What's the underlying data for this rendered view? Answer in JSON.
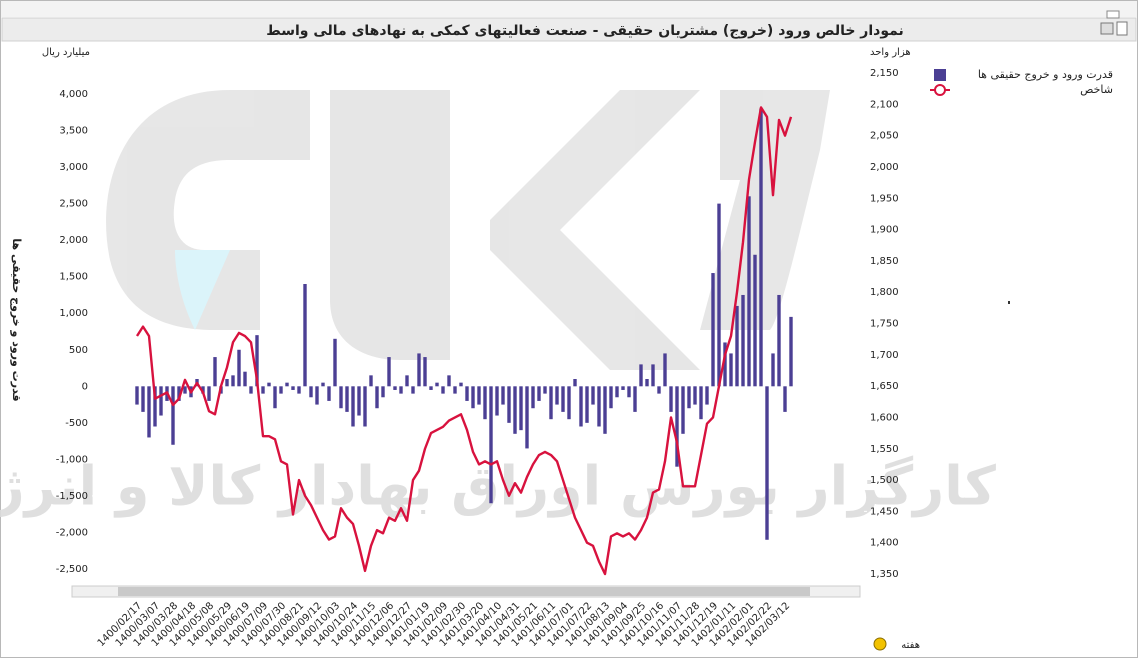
{
  "chart_data": {
    "type": "combo",
    "title": "نمودار خالص ورود (خروج) مشتریان حقیقی - صنعت فعالیتهای کمکی به نهادهای مالی واسط",
    "y_unit": "میلیارد ریال",
    "y2_unit": "هزار واحد",
    "ylabel": "قدرت ورود و خروج حقیقی ها",
    "xlabel": "هفته",
    "watermark": "کارگزار بورس اوراق بهادار کالا و انرژی",
    "categories": [
      "1400/02/17",
      null,
      null,
      "1400/03/07",
      null,
      null,
      "1400/03/28",
      null,
      null,
      "1400/04/18",
      null,
      null,
      "1400/05/08",
      null,
      null,
      "1400/05/29",
      null,
      null,
      "1400/06/19",
      null,
      null,
      "1400/07/09",
      null,
      null,
      "1400/07/30",
      null,
      null,
      "1400/08/21",
      null,
      null,
      "1400/09/12",
      null,
      null,
      "1400/10/03",
      null,
      null,
      "1400/10/24",
      null,
      null,
      "1400/11/15",
      null,
      null,
      "1400/12/06",
      null,
      null,
      "1400/12/27",
      null,
      null,
      "1401/01/19",
      null,
      null,
      "1401/02/09",
      null,
      null,
      "1401/02/30",
      null,
      null,
      "1401/03/20",
      null,
      null,
      "1401/04/10",
      null,
      null,
      "1401/04/31",
      null,
      null,
      "1401/05/21",
      null,
      null,
      "1401/06/11",
      null,
      null,
      "1401/07/01",
      null,
      null,
      "1401/07/22",
      null,
      null,
      "1401/08/13",
      null,
      null,
      "1401/09/04",
      null,
      null,
      "1401/09/25",
      null,
      null,
      "1401/10/16",
      null,
      null,
      "1401/11/07",
      null,
      null,
      "1401/11/28",
      null,
      null,
      "1401/12/19",
      null,
      null,
      "1402/01/11",
      null,
      null,
      "1402/02/01",
      null,
      null,
      "1402/02/22",
      null,
      null,
      "1402/03/12",
      null
    ],
    "series": [
      {
        "name": "قدرت ورود و خروج حقیقی ها",
        "kind": "bar",
        "color": "#4b3f94",
        "values": [
          -250,
          -350,
          -700,
          -550,
          -400,
          -200,
          -800,
          -200,
          -100,
          -150,
          100,
          -100,
          -200,
          400,
          -100,
          100,
          150,
          500,
          200,
          -100,
          700,
          -100,
          50,
          -300,
          -100,
          50,
          -50,
          -100,
          1400,
          -150,
          -250,
          50,
          -200,
          650,
          -300,
          -350,
          -550,
          -400,
          -550,
          150,
          -300,
          -150,
          400,
          -50,
          -100,
          150,
          -100,
          450,
          400,
          -50,
          50,
          -100,
          150,
          -100,
          50,
          -200,
          -300,
          -250,
          -450,
          -1600,
          -400,
          -250,
          -500,
          -650,
          -600,
          -850,
          -300,
          -200,
          -100,
          -450,
          -250,
          -350,
          -450,
          100,
          -550,
          -500,
          -250,
          -550,
          -650,
          -300,
          -150,
          -50,
          -150,
          -350,
          300,
          100,
          300,
          -100,
          450,
          -350,
          -1100,
          -650,
          -300,
          -250,
          -450,
          -250,
          1550,
          2500,
          600,
          450,
          1100,
          1250,
          2600,
          1800,
          3800,
          -2100,
          450,
          1250,
          -350,
          950
        ]
      },
      {
        "name": "شاخص",
        "kind": "line",
        "axis": "y2",
        "color": "#d8123e",
        "values": [
          1730,
          1745,
          1730,
          1630,
          1635,
          1640,
          1620,
          1630,
          1660,
          1640,
          1655,
          1640,
          1610,
          1605,
          1650,
          1680,
          1720,
          1735,
          1730,
          1720,
          1660,
          1570,
          1570,
          1565,
          1530,
          1525,
          1445,
          1500,
          1475,
          1460,
          1440,
          1420,
          1405,
          1410,
          1455,
          1440,
          1430,
          1395,
          1355,
          1395,
          1420,
          1415,
          1440,
          1435,
          1455,
          1435,
          1500,
          1515,
          1550,
          1575,
          1580,
          1585,
          1595,
          1600,
          1605,
          1580,
          1545,
          1525,
          1530,
          1525,
          1530,
          1500,
          1475,
          1495,
          1480,
          1505,
          1525,
          1540,
          1545,
          1540,
          1530,
          1500,
          1470,
          1440,
          1420,
          1400,
          1395,
          1370,
          1350,
          1410,
          1415,
          1410,
          1415,
          1405,
          1420,
          1440,
          1480,
          1485,
          1530,
          1600,
          1560,
          1490,
          1490,
          1490,
          1540,
          1590,
          1600,
          1650,
          1700,
          1730,
          1800,
          1880,
          1980,
          2040,
          2095,
          2080,
          1955,
          2075,
          2050,
          2080
        ]
      }
    ],
    "ylim": [
      -2500,
      4000
    ],
    "yticks": [
      {
        "value": 4000,
        "label": "4,000"
      },
      {
        "value": 3500,
        "label": "3,500"
      },
      {
        "value": 3000,
        "label": "3,000"
      },
      {
        "value": 2500,
        "label": "2,500"
      },
      {
        "value": 2000,
        "label": "2,000"
      },
      {
        "value": 1500,
        "label": "1,500"
      },
      {
        "value": 1000,
        "label": "1,000"
      },
      500,
      0,
      -500,
      {
        "value": -1000,
        "label": "-1,000"
      },
      {
        "value": -1500,
        "label": "-1,500"
      },
      {
        "value": -2000,
        "label": "-2,000"
      },
      {
        "value": -2500,
        "label": "-2,500"
      }
    ],
    "y2lim": [
      1350,
      2150
    ],
    "y2ticks": [
      {
        "value": 2150,
        "label": "2,150"
      },
      {
        "value": 2100,
        "label": "2,100"
      },
      {
        "value": 2050,
        "label": "2,050"
      },
      {
        "value": 2000,
        "label": "2,000"
      },
      {
        "value": 1950,
        "label": "1,950"
      },
      {
        "value": 1900,
        "label": "1,900"
      },
      {
        "value": 1850,
        "label": "1,850"
      },
      {
        "value": 1800,
        "label": "1,800"
      },
      {
        "value": 1750,
        "label": "1,750"
      },
      {
        "value": 1700,
        "label": "1,700"
      },
      {
        "value": 1650,
        "label": "1,650"
      },
      {
        "value": 1600,
        "label": "1,600"
      },
      {
        "value": 1550,
        "label": "1,550"
      },
      {
        "value": 1500,
        "label": "1,500"
      },
      {
        "value": 1450,
        "label": "1,450"
      },
      {
        "value": 1400,
        "label": "1,400"
      },
      {
        "value": 1350,
        "label": "1,350"
      }
    ]
  }
}
